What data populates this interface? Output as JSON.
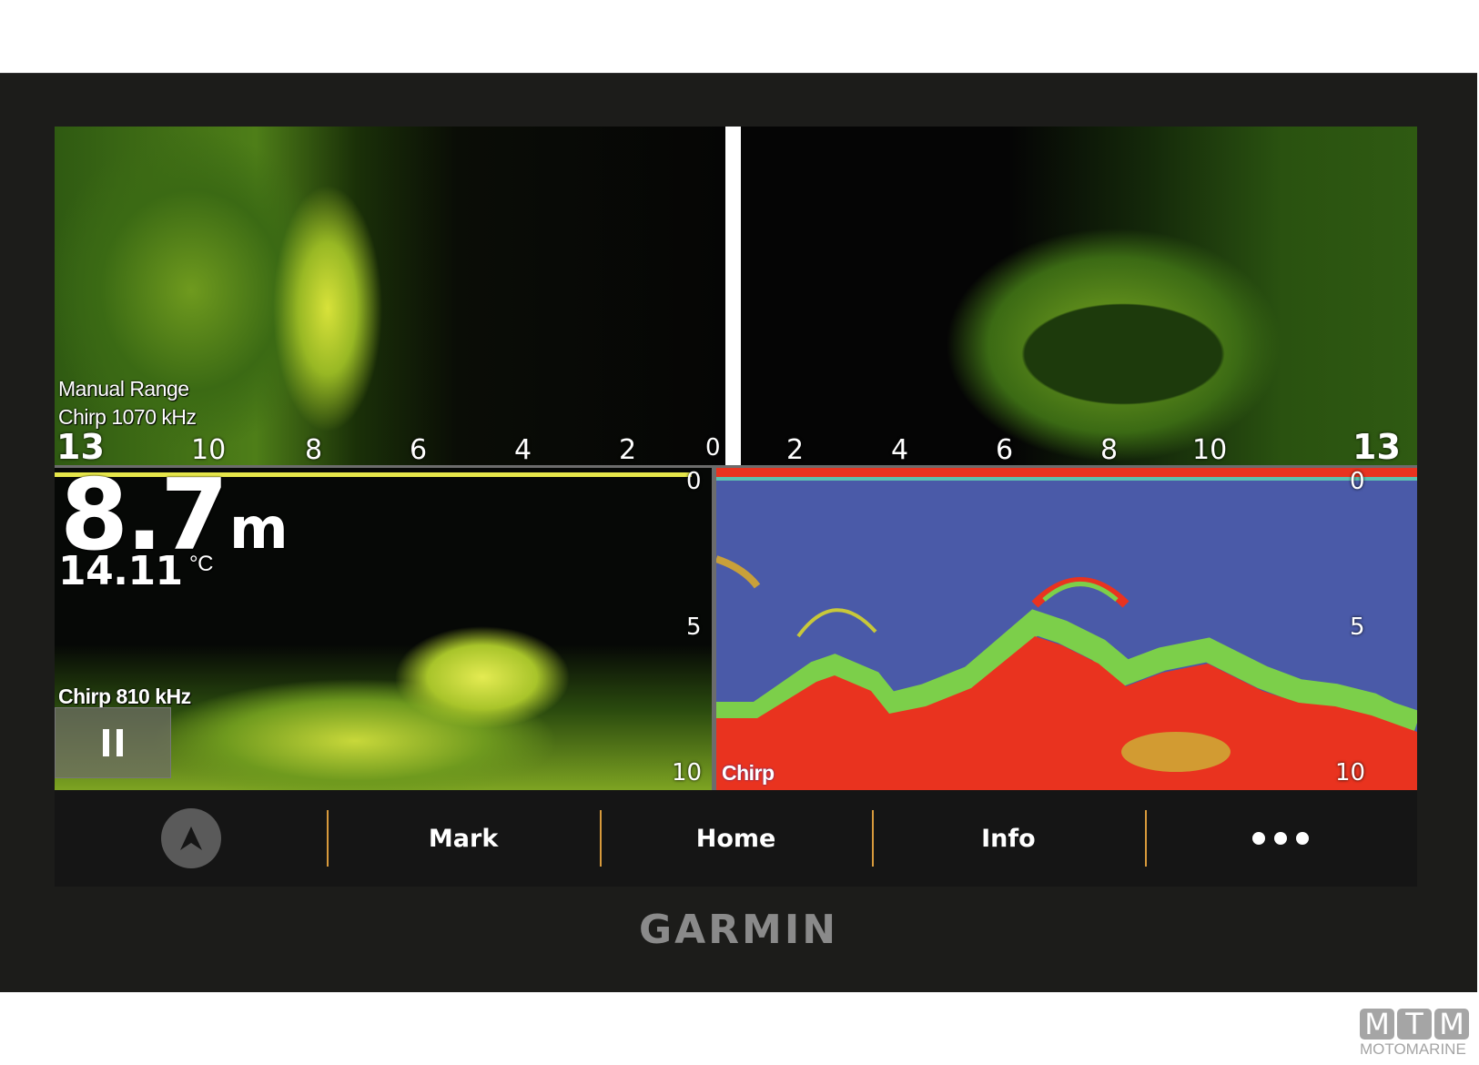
{
  "side_view": {
    "mode_label": "Manual Range",
    "frequency_label": "Chirp 1070 kHz",
    "left_scale": [
      "13",
      "10",
      "8",
      "6",
      "4",
      "2",
      "0"
    ],
    "right_scale": [
      "2",
      "4",
      "6",
      "8",
      "10",
      "13"
    ]
  },
  "traditional_view": {
    "depth_value": "8.7",
    "depth_unit": "m",
    "temperature_value": "14.11",
    "temperature_unit": "°C",
    "frequency_label": "Chirp 810 kHz",
    "depth_scale": [
      "0",
      "5",
      "10"
    ],
    "pause_icon": "pause-icon"
  },
  "chirp_view": {
    "label": "Chirp",
    "depth_scale": [
      "0",
      "5",
      "10"
    ],
    "colors": {
      "water": "#4a5aa8",
      "bottom": "#e9331f",
      "mid": "#7ccf4a"
    }
  },
  "toolbar": {
    "nav_icon": "navigation-arrow-icon",
    "buttons": [
      "Mark",
      "Home",
      "Info"
    ],
    "more_icon": "more-dots-icon"
  },
  "brand": "GARMIN",
  "watermark": {
    "letters": [
      "M",
      "T",
      "M"
    ],
    "name": "MOTOMARINE"
  }
}
